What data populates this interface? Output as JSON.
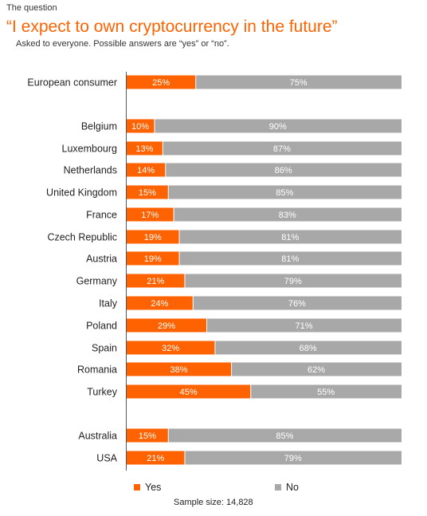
{
  "header": {
    "eyebrow": "The question",
    "title": "“I expect to own cryptocurrency in the future”",
    "subtitle": "Asked to everyone. Possible answers are “yes” or “no”."
  },
  "colors": {
    "yes": "#ff6200",
    "no": "#a8a8a8",
    "title": "#ff6200"
  },
  "legend": {
    "yes_label": "Yes",
    "no_label": "No"
  },
  "footer": {
    "sample_size": "Sample size: 14,828"
  },
  "chart_data": {
    "type": "bar",
    "orientation": "horizontal",
    "stacked": true,
    "categories": [
      "European consumer",
      "Belgium",
      "Luxembourg",
      "Netherlands",
      "United Kingdom",
      "France",
      "Czech Republic",
      "Austria",
      "Germany",
      "Italy",
      "Poland",
      "Spain",
      "Romania",
      "Turkey",
      "Australia",
      "USA"
    ],
    "series": [
      {
        "name": "Yes",
        "values": [
          25,
          10,
          13,
          14,
          15,
          17,
          19,
          19,
          21,
          24,
          29,
          32,
          38,
          45,
          15,
          21
        ]
      },
      {
        "name": "No",
        "values": [
          75,
          90,
          87,
          86,
          85,
          83,
          81,
          81,
          79,
          76,
          71,
          68,
          62,
          55,
          85,
          79
        ]
      }
    ],
    "value_suffix": "%",
    "xlim": [
      0,
      100
    ],
    "legend_position": "bottom"
  }
}
